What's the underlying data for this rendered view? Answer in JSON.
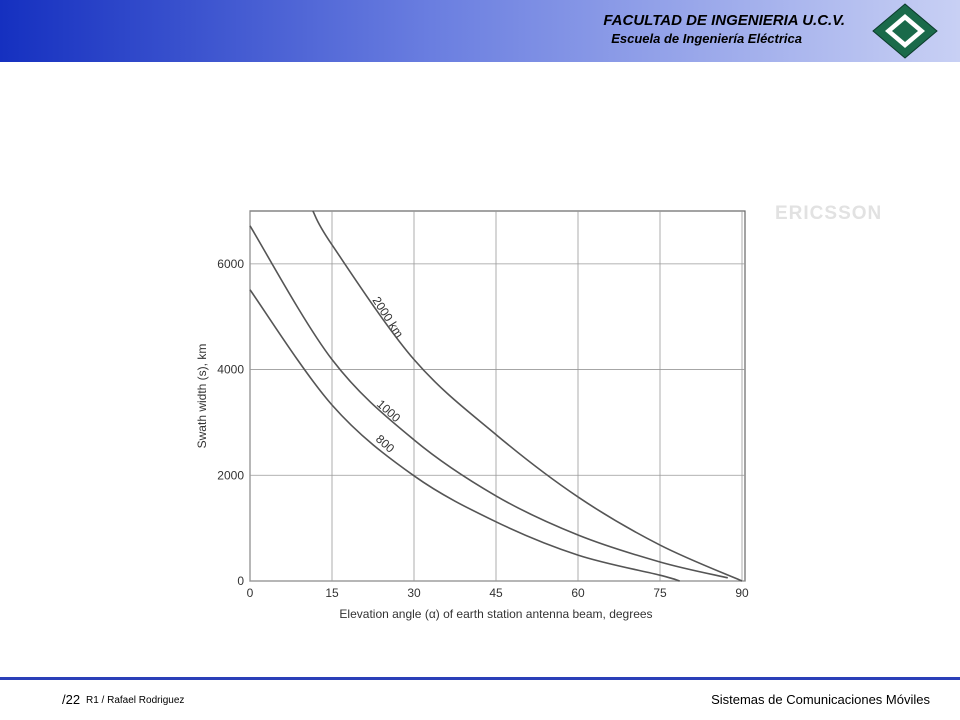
{
  "header": {
    "title": "FACULTAD DE INGENIERIA U.C.V.",
    "subtitle": "Escuela de Ingeniería Eléctrica"
  },
  "watermark": "ERICSSON",
  "footer": {
    "page": "/22",
    "author": "R1 / Rafael Rodriguez",
    "course": "Sistemas de Comunicaciones Móviles"
  },
  "chart_data": {
    "type": "line",
    "x_label": "Elevation angle (α) of earth station antenna beam, degrees",
    "y_label": "Swath width (s), km",
    "xlim": [
      0,
      90
    ],
    "xticks": [
      0,
      15,
      30,
      45,
      60,
      75,
      90
    ],
    "ylim": [
      0,
      7000
    ],
    "yticks": [
      0,
      2000,
      4000,
      6000
    ],
    "grid": true,
    "color": "#555555",
    "series": [
      {
        "name": "2000 km",
        "x": [
          11.5,
          15,
          30,
          45,
          60,
          75,
          90
        ],
        "values": [
          7000,
          6360,
          4190,
          2770,
          1590,
          680,
          0
        ]
      },
      {
        "name": "1000",
        "x": [
          0,
          15,
          30,
          45,
          60,
          75,
          87.4
        ],
        "values": [
          6720,
          4190,
          2670,
          1610,
          870,
          360,
          60
        ]
      },
      {
        "name": "800",
        "x": [
          0,
          15,
          30,
          45,
          60,
          75,
          78.6
        ],
        "values": [
          5510,
          3330,
          1990,
          1120,
          490,
          110,
          0
        ]
      }
    ]
  }
}
